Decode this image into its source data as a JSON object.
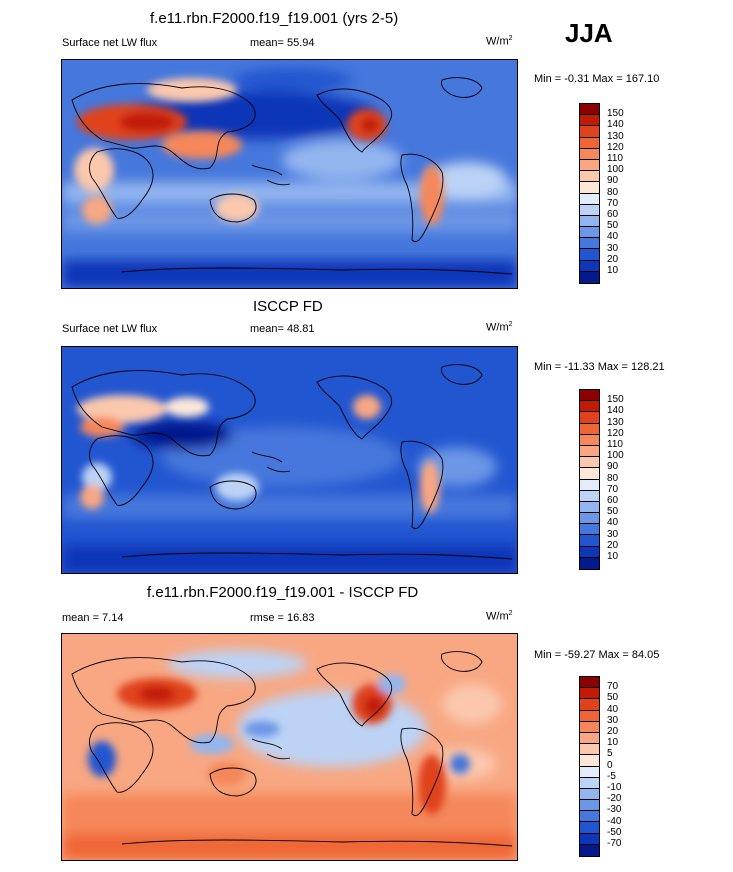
{
  "season": "JJA",
  "panels": [
    {
      "title": "f.e11.rbn.F2000.f19_f19.001 (yrs 2-5)",
      "left_label": "Surface net LW flux",
      "mid_label": "mean=  55.94",
      "unit": "W/m",
      "unit_sup": "2",
      "minmax": "Min =  -0.31 Max = 167.10",
      "palette": "flux"
    },
    {
      "title": "ISCCP FD",
      "left_label": "Surface net LW flux",
      "mid_label": "mean=  48.81",
      "unit": "W/m",
      "unit_sup": "2",
      "minmax": "Min = -11.33 Max = 128.21",
      "palette": "flux"
    },
    {
      "title": "f.e11.rbn.F2000.f19_f19.001 - ISCCP FD",
      "left_label": "mean =  7.14",
      "mid_label": "rmse =  16.83",
      "unit": "W/m",
      "unit_sup": "2",
      "minmax": "Min = -59.27 Max =  84.05",
      "palette": "diff"
    }
  ],
  "colorbars": {
    "flux": {
      "labels": [
        "150",
        "140",
        "130",
        "120",
        "110",
        "100",
        "90",
        "80",
        "70",
        "60",
        "50",
        "40",
        "30",
        "20",
        "10"
      ],
      "colors": [
        "#8b0000",
        "#c11b07",
        "#e0421b",
        "#ef6636",
        "#f5875a",
        "#f8a782",
        "#fbc8ad",
        "#fde7d9",
        "#e2ecfb",
        "#bcd3f6",
        "#93b5ef",
        "#6c96e6",
        "#4677dc",
        "#2256d0",
        "#0d36b8",
        "#03198c"
      ]
    },
    "diff": {
      "labels": [
        "70",
        "50",
        "40",
        "30",
        "20",
        "10",
        "5",
        "0",
        "-5",
        "-10",
        "-20",
        "-30",
        "-40",
        "-50",
        "-70"
      ],
      "colors": [
        "#8b0000",
        "#c11b07",
        "#e0421b",
        "#ef6636",
        "#f5875a",
        "#f8a782",
        "#fbc8ad",
        "#fde7d9",
        "#e2ecfb",
        "#bcd3f6",
        "#93b5ef",
        "#6c96e6",
        "#4677dc",
        "#2256d0",
        "#0d36b8",
        "#03198c"
      ]
    }
  }
}
